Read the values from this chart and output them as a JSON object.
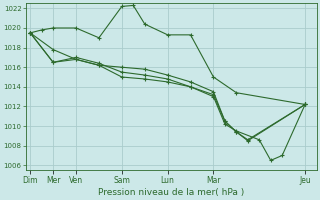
{
  "title": "",
  "xlabel": "Pression niveau de la mer( hPa )",
  "bg_color": "#cce8e8",
  "grid_color": "#aacccc",
  "line_color": "#2d6a2d",
  "ylim": [
    1005.5,
    1022.5
  ],
  "yticks": [
    1006,
    1008,
    1010,
    1012,
    1014,
    1016,
    1018,
    1020,
    1022
  ],
  "x_tick_positions": [
    0,
    1,
    2,
    4,
    6,
    8,
    12
  ],
  "x_tick_labels": [
    "Dim",
    "Mer",
    "Ven",
    "Sam",
    "Lun",
    "Mar",
    "Jeu"
  ],
  "xlim": [
    -0.2,
    12.5
  ],
  "series": [
    {
      "x": [
        0,
        0.5,
        1,
        2,
        3,
        4,
        4.5,
        5,
        6,
        7,
        8,
        9,
        12
      ],
      "y": [
        1019.5,
        1019.8,
        1020.0,
        1020.0,
        1019.0,
        1022.2,
        1022.3,
        1020.4,
        1019.3,
        1019.3,
        1015.0,
        1013.4,
        1012.2
      ]
    },
    {
      "x": [
        0,
        1,
        2,
        3,
        4,
        5,
        6,
        7,
        8,
        8.5,
        9,
        9.5,
        12
      ],
      "y": [
        1019.5,
        1017.8,
        1016.8,
        1016.2,
        1016.0,
        1015.8,
        1015.2,
        1014.5,
        1013.5,
        1010.5,
        1009.4,
        1008.6,
        1012.2
      ]
    },
    {
      "x": [
        0,
        1,
        2,
        3,
        4,
        5,
        6,
        7,
        8,
        8.5,
        9,
        9.5,
        12
      ],
      "y": [
        1019.5,
        1016.5,
        1017.0,
        1016.4,
        1015.5,
        1015.2,
        1014.8,
        1014.0,
        1013.2,
        1010.5,
        1009.4,
        1008.5,
        1012.2
      ]
    },
    {
      "x": [
        0,
        1,
        2,
        3,
        4,
        5,
        6,
        7,
        8,
        8.5,
        9,
        10,
        10.5,
        11,
        12
      ],
      "y": [
        1019.5,
        1016.5,
        1016.8,
        1016.2,
        1015.0,
        1014.8,
        1014.5,
        1014.0,
        1013.0,
        1010.2,
        1009.5,
        1008.6,
        1006.5,
        1007.0,
        1012.2
      ]
    }
  ]
}
